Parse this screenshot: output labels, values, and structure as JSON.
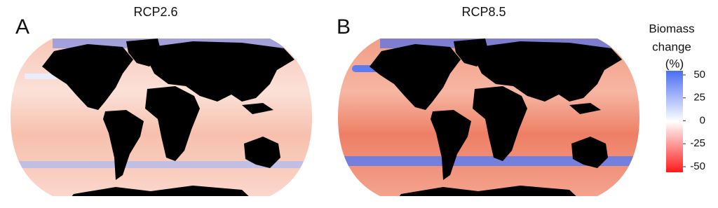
{
  "panels": [
    {
      "label": "A",
      "title": "RCP2.6"
    },
    {
      "label": "B",
      "title": "RCP8.5"
    }
  ],
  "colorbar": {
    "title": [
      "Biomass",
      "change",
      "(%)"
    ],
    "lim": [
      -50,
      50
    ],
    "ticks": [
      50,
      25,
      0,
      -25,
      -50
    ]
  }
}
